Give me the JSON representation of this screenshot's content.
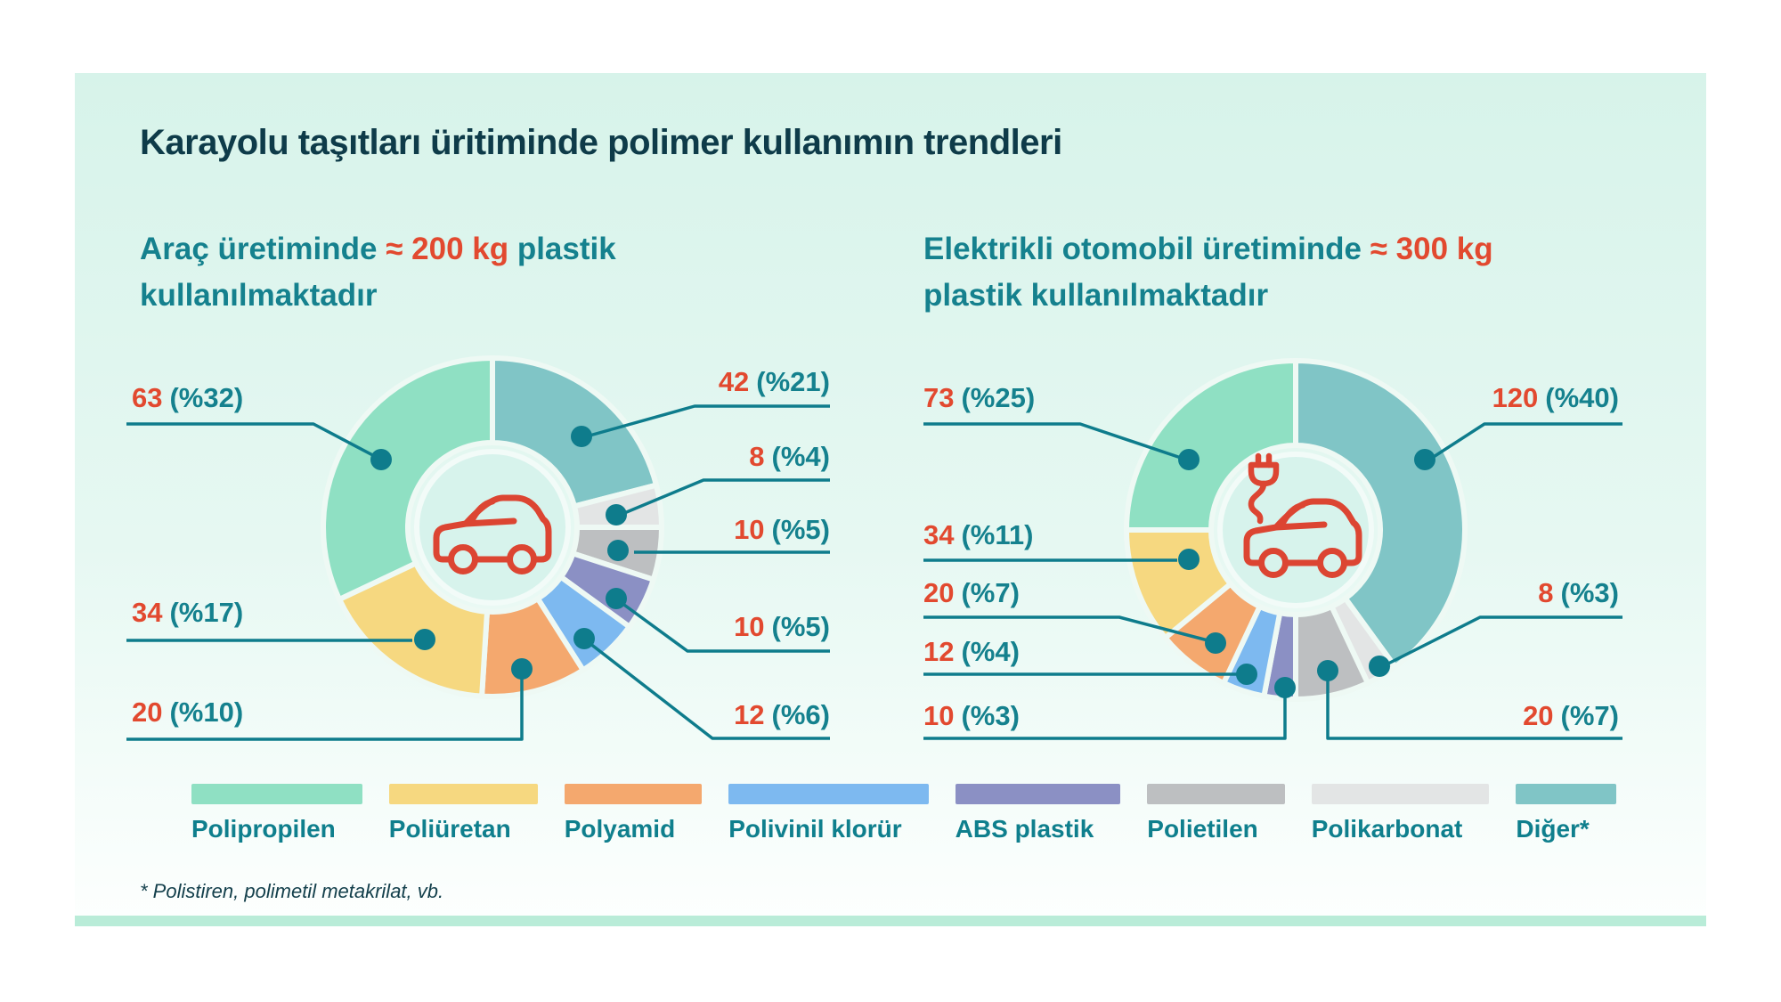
{
  "title": "Karayolu taşıtları üritiminde polimer kullanımın trendleri",
  "charts": [
    {
      "subtitle": {
        "pre": "Araç üretiminde ",
        "red": "≈ 200 kg",
        "post": " plastik",
        "line2": "kullanılmaktadır"
      }
    },
    {
      "subtitle": {
        "pre": "Elektrikli otomobil üretiminde ",
        "red": "≈ 300 kg",
        "post": "",
        "line2": "plastik kullanılmaktadır"
      }
    }
  ],
  "legend": [
    {
      "label": "Polipropilen",
      "color": "#8fe0c3"
    },
    {
      "label": "Poliüretan",
      "color": "#f6d880"
    },
    {
      "label": "Polyamid",
      "color": "#f4a86e"
    },
    {
      "label": "Polivinil klorür",
      "color": "#7db9f0"
    },
    {
      "label": "ABS plastik",
      "color": "#8b90c4"
    },
    {
      "label": "Polietilen",
      "color": "#bdbfc1"
    },
    {
      "label": "Polikarbonat",
      "color": "#e3e5e5"
    },
    {
      "label": "Diğer*",
      "color": "#80c5c6"
    }
  ],
  "footnote": "* Polistiren, polimetil metakrilat, vb.",
  "colors": {
    "accent_red": "#e2492f",
    "teal_text": "#15818e",
    "leader": "#0e7c8c",
    "title": "#0e3b49",
    "card_top": "#d7f3ea",
    "bottom_bar": "#b9ecd8",
    "car_icon": "#dc4532"
  },
  "chart_data": [
    {
      "type": "pie",
      "subtype": "donut",
      "title": "Araç üretiminde ≈ 200 kg plastik kullanılmaktadır",
      "unit": "kg",
      "total_kg": 200,
      "slices": [
        {
          "name": "Diğer",
          "value": 42,
          "pct": 21,
          "pct_label": "(%21)",
          "color": "#80c5c6"
        },
        {
          "name": "Polikarbonat",
          "value": 8,
          "pct": 4,
          "pct_label": "(%4)",
          "color": "#e3e5e5"
        },
        {
          "name": "Polietilen",
          "value": 10,
          "pct": 5,
          "pct_label": "(%5)",
          "color": "#bdbfc1"
        },
        {
          "name": "ABS plastik",
          "value": 10,
          "pct": 5,
          "pct_label": "(%5)",
          "color": "#8b90c4"
        },
        {
          "name": "Polivinil klorür",
          "value": 12,
          "pct": 6,
          "pct_label": "(%6)",
          "color": "#7db9f0"
        },
        {
          "name": "Polyamid",
          "value": 20,
          "pct": 10,
          "pct_label": "(%10)",
          "color": "#f4a86e"
        },
        {
          "name": "Poliüretan",
          "value": 34,
          "pct": 17,
          "pct_label": "(%17)",
          "color": "#f6d880"
        },
        {
          "name": "Polipropilen",
          "value": 63,
          "pct": 32,
          "pct_label": "(%32)",
          "color": "#8fe0c3"
        }
      ]
    },
    {
      "type": "pie",
      "subtype": "donut",
      "title": "Elektrikli otomobil üretiminde ≈ 300 kg plastik kullanılmaktadır",
      "unit": "kg",
      "total_kg": 300,
      "slices": [
        {
          "name": "Diğer",
          "value": 120,
          "pct": 40,
          "pct_label": "(%40)",
          "color": "#80c5c6"
        },
        {
          "name": "Polikarbonat",
          "value": 8,
          "pct": 3,
          "pct_label": "(%3)",
          "color": "#e3e5e5"
        },
        {
          "name": "Polietilen",
          "value": 20,
          "pct": 7,
          "pct_label": "(%7)",
          "color": "#bdbfc1"
        },
        {
          "name": "ABS plastik",
          "value": 10,
          "pct": 3,
          "pct_label": "(%3)",
          "color": "#8b90c4"
        },
        {
          "name": "Polivinil klorür",
          "value": 12,
          "pct": 4,
          "pct_label": "(%4)",
          "color": "#7db9f0"
        },
        {
          "name": "Polyamid",
          "value": 20,
          "pct": 7,
          "pct_label": "(%7)",
          "color": "#f4a86e"
        },
        {
          "name": "Poliüretan",
          "value": 34,
          "pct": 11,
          "pct_label": "(%11)",
          "color": "#f6d880"
        },
        {
          "name": "Polipropilen",
          "value": 73,
          "pct": 25,
          "pct_label": "(%25)",
          "color": "#8fe0c3"
        }
      ]
    }
  ]
}
